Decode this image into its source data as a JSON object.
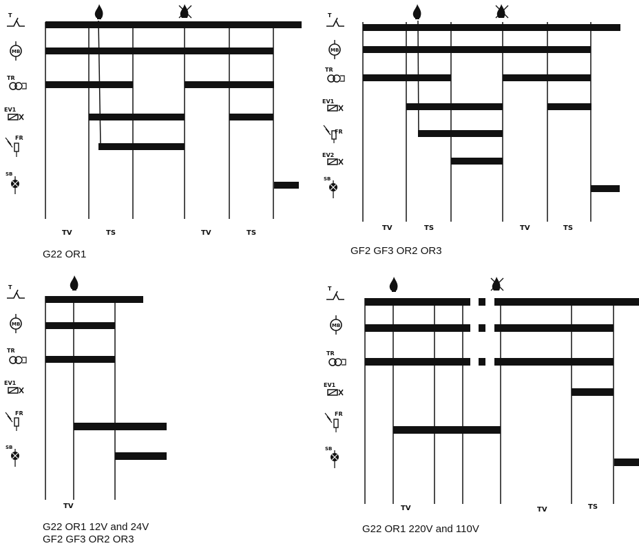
{
  "symbols": {
    "thermostat": "T",
    "motor": "MB",
    "transformer": "TR",
    "valve1": "EV1",
    "valve2": "EV2",
    "flame_rod": "FR",
    "lockout": "SB"
  },
  "icons": {
    "flame": "flame-icon",
    "no_flame": "no-flame-icon"
  },
  "phase_labels": {
    "tv": "TV",
    "ts": "TS"
  },
  "diagrams": [
    {
      "id": "a",
      "caption_line1": "G22 OR1",
      "caption_line2": ""
    },
    {
      "id": "b",
      "caption_line1": "GF2 GF3 OR2 OR3",
      "caption_line2": ""
    },
    {
      "id": "c",
      "caption_line1": "G22 OR1 12V and 24V",
      "caption_line2": "GF2 GF3 OR2 OR3"
    },
    {
      "id": "d",
      "caption_line1": "G22 OR1 220V and 110V",
      "caption_line2": ""
    }
  ],
  "colors": {
    "ink": "#111111",
    "background": "#ffffff"
  }
}
